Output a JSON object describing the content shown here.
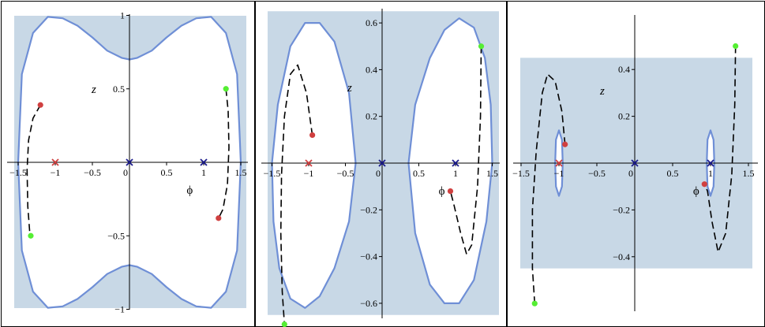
{
  "chart_data": [
    {
      "type": "line",
      "axis_titles": {
        "x": "ϕ",
        "y": "z"
      },
      "xlim": [
        -1.6,
        1.6
      ],
      "ylim": [
        -1,
        1
      ],
      "x_ticks": [
        "-1.5",
        "-1",
        "-0.5",
        "0",
        "0.5",
        "1",
        "1.5"
      ],
      "y_ticks": [
        "-1",
        "-0.5",
        "0.5",
        "1"
      ],
      "shaded_region": {
        "x": [
          -1.6,
          1.6
        ],
        "y": [
          -1,
          1
        ]
      },
      "boundary_curves": [
        {
          "x": [
            -1.5,
            -1.45,
            -1.3,
            -1.1,
            -0.9,
            -0.7,
            -0.5,
            -0.3,
            -0.1,
            0,
            0.1,
            0.3,
            0.5,
            0.7,
            0.9,
            1.1,
            1.3,
            1.45,
            1.5
          ],
          "y": [
            0,
            0.6,
            0.88,
            0.99,
            0.98,
            0.93,
            0.85,
            0.76,
            0.71,
            0.7,
            0.71,
            0.76,
            0.85,
            0.93,
            0.98,
            0.99,
            0.88,
            0.6,
            0
          ]
        },
        {
          "x": [
            -1.5,
            -1.45,
            -1.3,
            -1.1,
            -0.9,
            -0.7,
            -0.5,
            -0.3,
            -0.1,
            0,
            0.1,
            0.3,
            0.5,
            0.7,
            0.9,
            1.1,
            1.3,
            1.45,
            1.5
          ],
          "y": [
            0,
            -0.6,
            -0.88,
            -0.99,
            -0.98,
            -0.93,
            -0.85,
            -0.76,
            -0.71,
            -0.7,
            -0.71,
            -0.76,
            -0.85,
            -0.93,
            -0.98,
            -0.99,
            -0.88,
            -0.6,
            0
          ]
        }
      ],
      "trajectories": [
        {
          "x": [
            -1.2,
            -1.3,
            -1.36,
            -1.38,
            -1.37,
            -1.34
          ],
          "y": [
            0.39,
            0.3,
            0.15,
            -0.05,
            -0.3,
            -0.5
          ]
        },
        {
          "x": [
            1.3,
            1.33,
            1.34,
            1.32,
            1.26,
            1.2
          ],
          "y": [
            0.5,
            0.35,
            0.1,
            -0.15,
            -0.32,
            -0.38
          ]
        }
      ],
      "points": [
        {
          "x": -1.2,
          "y": 0.39,
          "color": "#d04040"
        },
        {
          "x": -1.33,
          "y": -0.5,
          "color": "#55ee33"
        },
        {
          "x": 1.3,
          "y": 0.5,
          "color": "#55ee33"
        },
        {
          "x": 1.2,
          "y": -0.38,
          "color": "#d04040"
        }
      ],
      "markers": [
        {
          "x": -1,
          "y": 0,
          "color": "#d04040"
        },
        {
          "x": 0,
          "y": 0,
          "color": "#1a1a8c"
        },
        {
          "x": 1,
          "y": 0,
          "color": "#1a1a8c"
        }
      ]
    },
    {
      "type": "line",
      "axis_titles": {
        "x": "ϕ",
        "y": "z"
      },
      "xlim": [
        -1.6,
        1.6
      ],
      "ylim": [
        -0.65,
        0.65
      ],
      "x_ticks": [
        "-1.5",
        "-1",
        "-0.5",
        "0",
        "0.5",
        "1",
        "1.5"
      ],
      "y_ticks": [
        "-0.6",
        "-0.4",
        "-0.2",
        "0.2",
        "0.4",
        "0.6"
      ],
      "shaded_region": {
        "x": [
          -1.6,
          1.6
        ],
        "y": [
          -0.65,
          0.65
        ]
      },
      "boundary_curves": [
        {
          "x": [
            -0.36,
            -0.45,
            -0.65,
            -0.85,
            -1.05,
            -1.25,
            -1.42,
            -1.5,
            -1.48,
            -1.4,
            -1.25,
            -1.05,
            -0.85,
            -0.65,
            -0.45,
            -0.36
          ],
          "y": [
            0,
            0.3,
            0.52,
            0.6,
            0.6,
            0.5,
            0.25,
            0,
            -0.25,
            -0.45,
            -0.58,
            -0.62,
            -0.57,
            -0.45,
            -0.25,
            0
          ]
        },
        {
          "x": [
            0.36,
            0.45,
            0.65,
            0.85,
            1.05,
            1.25,
            1.42,
            1.5,
            1.48,
            1.4,
            1.25,
            1.05,
            0.85,
            0.65,
            0.45,
            0.36
          ],
          "y": [
            0,
            -0.3,
            -0.52,
            -0.6,
            -0.6,
            -0.5,
            -0.25,
            0,
            0.25,
            0.45,
            0.58,
            0.62,
            0.57,
            0.45,
            0.25,
            0
          ]
        }
      ],
      "trajectories": [
        {
          "x": [
            -0.95,
            -1.03,
            -1.15,
            -1.25,
            -1.33,
            -1.37,
            -1.38,
            -1.36,
            -1.33
          ],
          "y": [
            0.12,
            0.3,
            0.42,
            0.38,
            0.2,
            -0.05,
            -0.3,
            -0.55,
            -0.69
          ]
        },
        {
          "x": [
            1.35,
            1.34,
            1.3,
            1.22,
            1.15,
            1.07,
            0.98,
            0.93
          ],
          "y": [
            0.5,
            0.2,
            -0.1,
            -0.35,
            -0.39,
            -0.3,
            -0.18,
            -0.12
          ]
        }
      ],
      "points": [
        {
          "x": -0.95,
          "y": 0.12,
          "color": "#d04040"
        },
        {
          "x": -1.33,
          "y": -0.69,
          "color": "#55ee33"
        },
        {
          "x": 1.35,
          "y": 0.5,
          "color": "#55ee33"
        },
        {
          "x": 0.93,
          "y": -0.12,
          "color": "#d04040"
        }
      ],
      "markers": [
        {
          "x": -1,
          "y": 0,
          "color": "#d04040"
        },
        {
          "x": 0,
          "y": 0,
          "color": "#1a1a8c"
        },
        {
          "x": 1,
          "y": 0,
          "color": "#1a1a8c"
        }
      ]
    },
    {
      "type": "line",
      "axis_titles": {
        "x": "ϕ",
        "y": "z"
      },
      "xlim": [
        -1.6,
        1.6
      ],
      "ylim": [
        -0.65,
        0.65
      ],
      "x_ticks": [
        "-1.5",
        "-1",
        "-0.5",
        "0",
        "0.5",
        "1",
        "1.5"
      ],
      "y_ticks": [
        "-0.4",
        "-0.2",
        "0.2",
        "0.4"
      ],
      "shaded_region": {
        "x": [
          -1.6,
          1.6
        ],
        "y": [
          -0.45,
          0.45
        ]
      },
      "boundary_curves": [
        {
          "x": [
            -0.95,
            -0.96,
            -1.0,
            -1.04,
            -1.05,
            -1.04,
            -1.0,
            -0.96,
            -0.95
          ],
          "y": [
            0,
            0.1,
            0.14,
            0.1,
            0,
            -0.1,
            -0.14,
            -0.1,
            0
          ]
        },
        {
          "x": [
            0.95,
            0.96,
            1.0,
            1.04,
            1.05,
            1.04,
            1.0,
            0.96,
            0.95
          ],
          "y": [
            0,
            0.1,
            0.14,
            0.1,
            0,
            -0.1,
            -0.14,
            -0.1,
            0
          ]
        }
      ],
      "trajectories": [
        {
          "x": [
            -0.92,
            -0.96,
            -1.05,
            -1.15,
            -1.22,
            -1.3,
            -1.35,
            -1.35,
            -1.32
          ],
          "y": [
            0.08,
            0.22,
            0.35,
            0.38,
            0.3,
            0.05,
            -0.2,
            -0.45,
            -0.6
          ]
        },
        {
          "x": [
            1.33,
            1.32,
            1.28,
            1.2,
            1.1,
            1.02,
            0.96,
            0.92
          ],
          "y": [
            0.5,
            0.25,
            -0.05,
            -0.3,
            -0.38,
            -0.25,
            -0.12,
            -0.09
          ]
        }
      ],
      "points": [
        {
          "x": -0.92,
          "y": 0.08,
          "color": "#d04040"
        },
        {
          "x": -1.32,
          "y": -0.6,
          "color": "#55ee33"
        },
        {
          "x": 1.33,
          "y": 0.5,
          "color": "#55ee33"
        },
        {
          "x": 0.92,
          "y": -0.09,
          "color": "#d04040"
        }
      ],
      "markers": [
        {
          "x": -1,
          "y": 0,
          "color": "#d04040"
        },
        {
          "x": 0,
          "y": 0,
          "color": "#1a1a8c"
        },
        {
          "x": 1,
          "y": 0,
          "color": "#1a1a8c"
        }
      ]
    }
  ],
  "style": {
    "shade_color": "#c8d8e6",
    "boundary_color": "#6f8fd6",
    "trajectory_color": "#000000"
  }
}
